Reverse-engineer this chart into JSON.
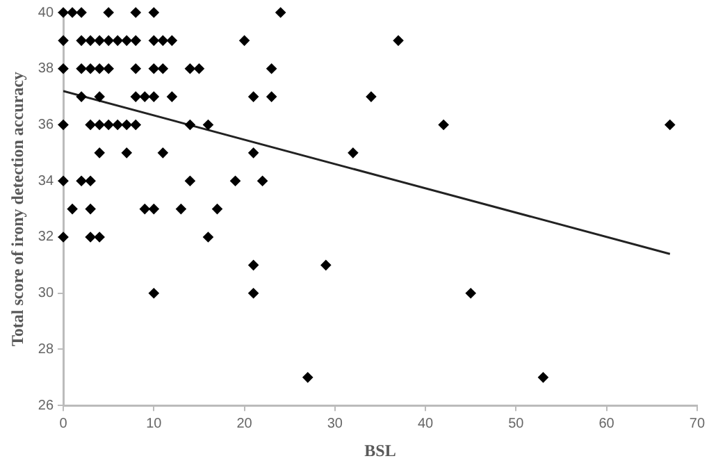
{
  "chart_data": {
    "type": "scatter",
    "xlabel": "BSL",
    "ylabel": "Total score of irony detection accuracy",
    "xlim": [
      0,
      70
    ],
    "xticks": [
      0,
      10,
      20,
      30,
      40,
      50,
      60,
      70
    ],
    "ylim": [
      26,
      40
    ],
    "yticks": [
      26,
      28,
      30,
      32,
      34,
      36,
      38,
      40
    ],
    "grid": false,
    "legend": false,
    "marker": "diamond",
    "series": [
      {
        "color": "#000000",
        "x": [
          0,
          1,
          2,
          5,
          8,
          10,
          24,
          0,
          2,
          3,
          4,
          5,
          6,
          7,
          8,
          10,
          11,
          12,
          20,
          37,
          0,
          2,
          3,
          4,
          5,
          8,
          10,
          11,
          14,
          15,
          23,
          2,
          4,
          8,
          9,
          10,
          12,
          21,
          23,
          34,
          0,
          3,
          4,
          5,
          6,
          7,
          8,
          14,
          16,
          42,
          67,
          4,
          7,
          11,
          21,
          32,
          0,
          2,
          3,
          14,
          19,
          22,
          1,
          3,
          9,
          10,
          13,
          17,
          0,
          3,
          4,
          16,
          21,
          29,
          10,
          21,
          45,
          27,
          53
        ],
        "values": [
          40,
          40,
          40,
          40,
          40,
          40,
          40,
          39,
          39,
          39,
          39,
          39,
          39,
          39,
          39,
          39,
          39,
          39,
          39,
          39,
          38,
          38,
          38,
          38,
          38,
          38,
          38,
          38,
          38,
          38,
          38,
          37,
          37,
          37,
          37,
          37,
          37,
          37,
          37,
          37,
          36,
          36,
          36,
          36,
          36,
          36,
          36,
          36,
          36,
          36,
          36,
          35,
          35,
          35,
          35,
          35,
          34,
          34,
          34,
          34,
          34,
          34,
          33,
          33,
          33,
          33,
          33,
          33,
          32,
          32,
          32,
          32,
          31,
          31,
          30,
          30,
          30,
          27,
          27
        ]
      },
      {
        "type": "line",
        "color": "#222222",
        "marker": "none",
        "x": [
          0,
          67
        ],
        "values": [
          37.2,
          31.4
        ]
      }
    ]
  }
}
